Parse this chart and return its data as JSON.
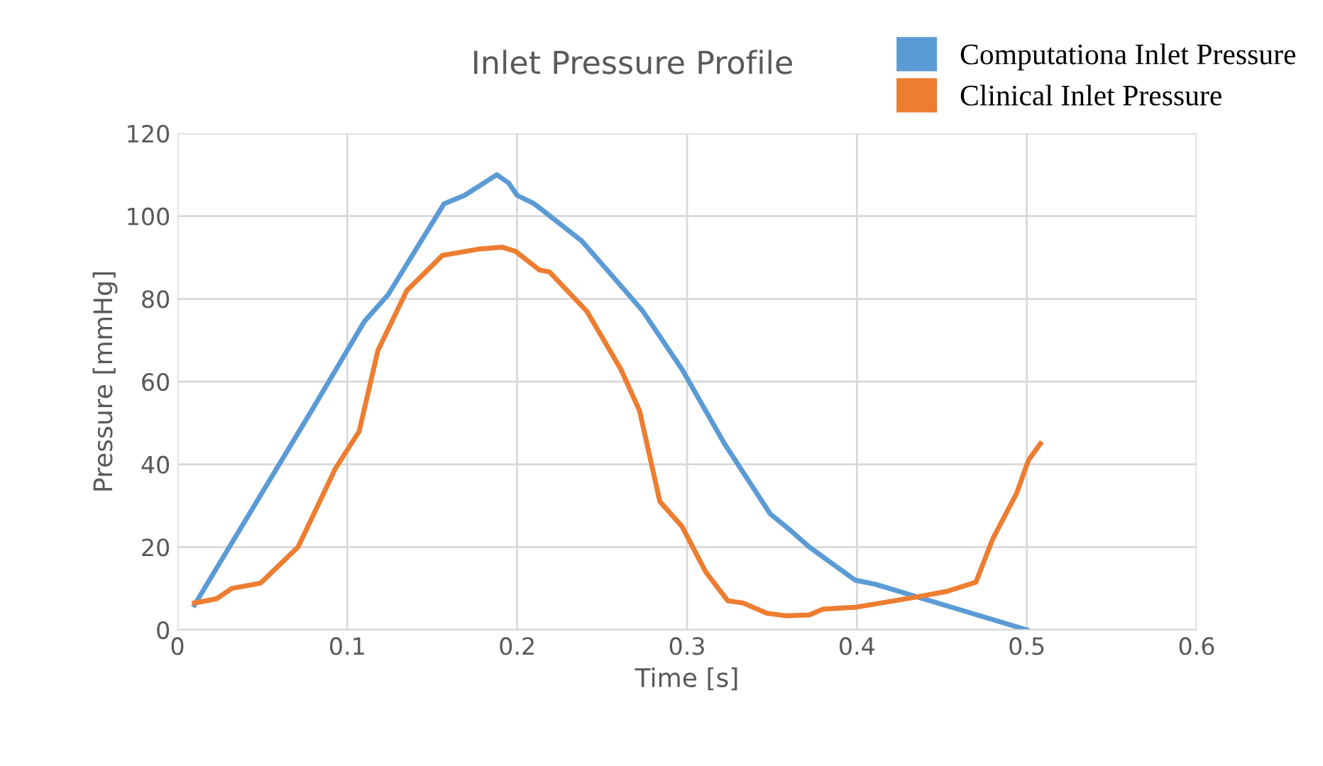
{
  "chart_data": {
    "type": "line",
    "title": "Inlet Pressure Profile",
    "xlabel": "Time [s]",
    "ylabel": "Pressure [mmHg]",
    "xlim": [
      0,
      0.6
    ],
    "xticks": [
      0,
      0.1,
      0.2,
      0.3,
      0.4,
      0.5,
      0.6
    ],
    "ylim": [
      0,
      120
    ],
    "yticks": [
      0,
      20,
      40,
      60,
      80,
      100,
      120
    ],
    "grid": true,
    "legend": "top right",
    "marker": "none",
    "line_style": "solid",
    "series": [
      {
        "name": "Computationa Inlet Pressure",
        "color": "#5b9bd5",
        "x": [
          0.01,
          0.032,
          0.079,
          0.11,
          0.124,
          0.157,
          0.169,
          0.188,
          0.195,
          0.2,
          0.21,
          0.238,
          0.255,
          0.274,
          0.297,
          0.322,
          0.349,
          0.361,
          0.372,
          0.399,
          0.411,
          0.5
        ],
        "values": [
          6,
          21,
          53,
          74.5,
          81,
          103,
          105,
          110,
          108,
          105,
          103,
          94,
          86,
          77,
          63,
          45,
          28,
          24,
          20,
          12,
          11,
          0
        ]
      },
      {
        "name": "Clinical Inlet Pressure",
        "color": "#ed7d31",
        "x": [
          0.01,
          0.023,
          0.032,
          0.049,
          0.071,
          0.093,
          0.107,
          0.118,
          0.135,
          0.156,
          0.163,
          0.177,
          0.191,
          0.199,
          0.213,
          0.219,
          0.241,
          0.261,
          0.272,
          0.284,
          0.297,
          0.311,
          0.324,
          0.333,
          0.347,
          0.358,
          0.372,
          0.38,
          0.4,
          0.436,
          0.453,
          0.47,
          0.48,
          0.494,
          0.501,
          0.508
        ],
        "values": [
          6.5,
          7.5,
          10,
          11.3,
          20,
          39,
          48,
          67.5,
          82,
          90.5,
          91,
          92,
          92.5,
          91.5,
          87,
          86.5,
          77,
          63,
          53,
          31,
          25,
          14,
          7,
          6.5,
          4,
          3.4,
          3.6,
          5,
          5.5,
          8,
          9.3,
          11.5,
          22,
          33,
          41,
          45
        ]
      }
    ]
  }
}
